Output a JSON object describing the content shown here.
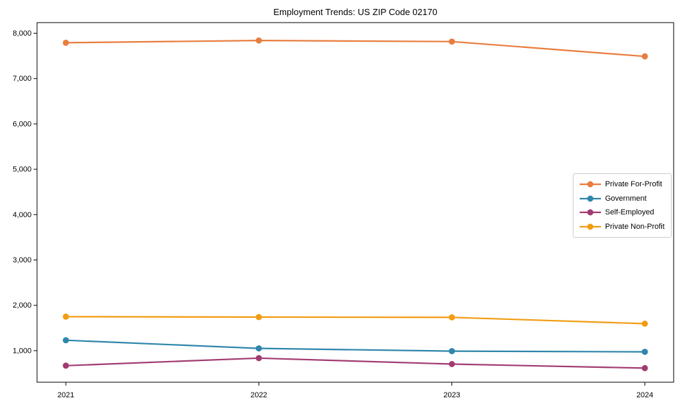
{
  "chart_data": {
    "type": "line",
    "title": "Employment Trends: US ZIP Code 02170",
    "x_categories": [
      "2021",
      "2022",
      "2023",
      "2024"
    ],
    "series": [
      {
        "name": "Private For-Profit",
        "color": "#e87d3e",
        "values": [
          7790,
          7840,
          7815,
          7490
        ]
      },
      {
        "name": "Government",
        "color": "#2e86ab",
        "values": [
          1230,
          1050,
          990,
          975
        ]
      },
      {
        "name": "Self-Employed",
        "color": "#a23b72",
        "values": [
          670,
          835,
          705,
          615
        ]
      },
      {
        "name": "Private Non-Profit",
        "color": "#f29c11",
        "values": [
          1750,
          1740,
          1735,
          1595
        ]
      }
    ],
    "yticks": [
      1000,
      2000,
      3000,
      4000,
      5000,
      6000,
      7000,
      8000
    ],
    "ytick_labels": [
      "1,000",
      "2,000",
      "3,000",
      "4,000",
      "5,000",
      "6,000",
      "7,000",
      "8,000"
    ],
    "ylim": [
      304,
      8234
    ],
    "xlabel": "",
    "ylabel": "",
    "grid": false,
    "legend_position": "center-right",
    "axis_color": "#000000",
    "text_color": "#000000",
    "background_color": "#ffffff"
  }
}
